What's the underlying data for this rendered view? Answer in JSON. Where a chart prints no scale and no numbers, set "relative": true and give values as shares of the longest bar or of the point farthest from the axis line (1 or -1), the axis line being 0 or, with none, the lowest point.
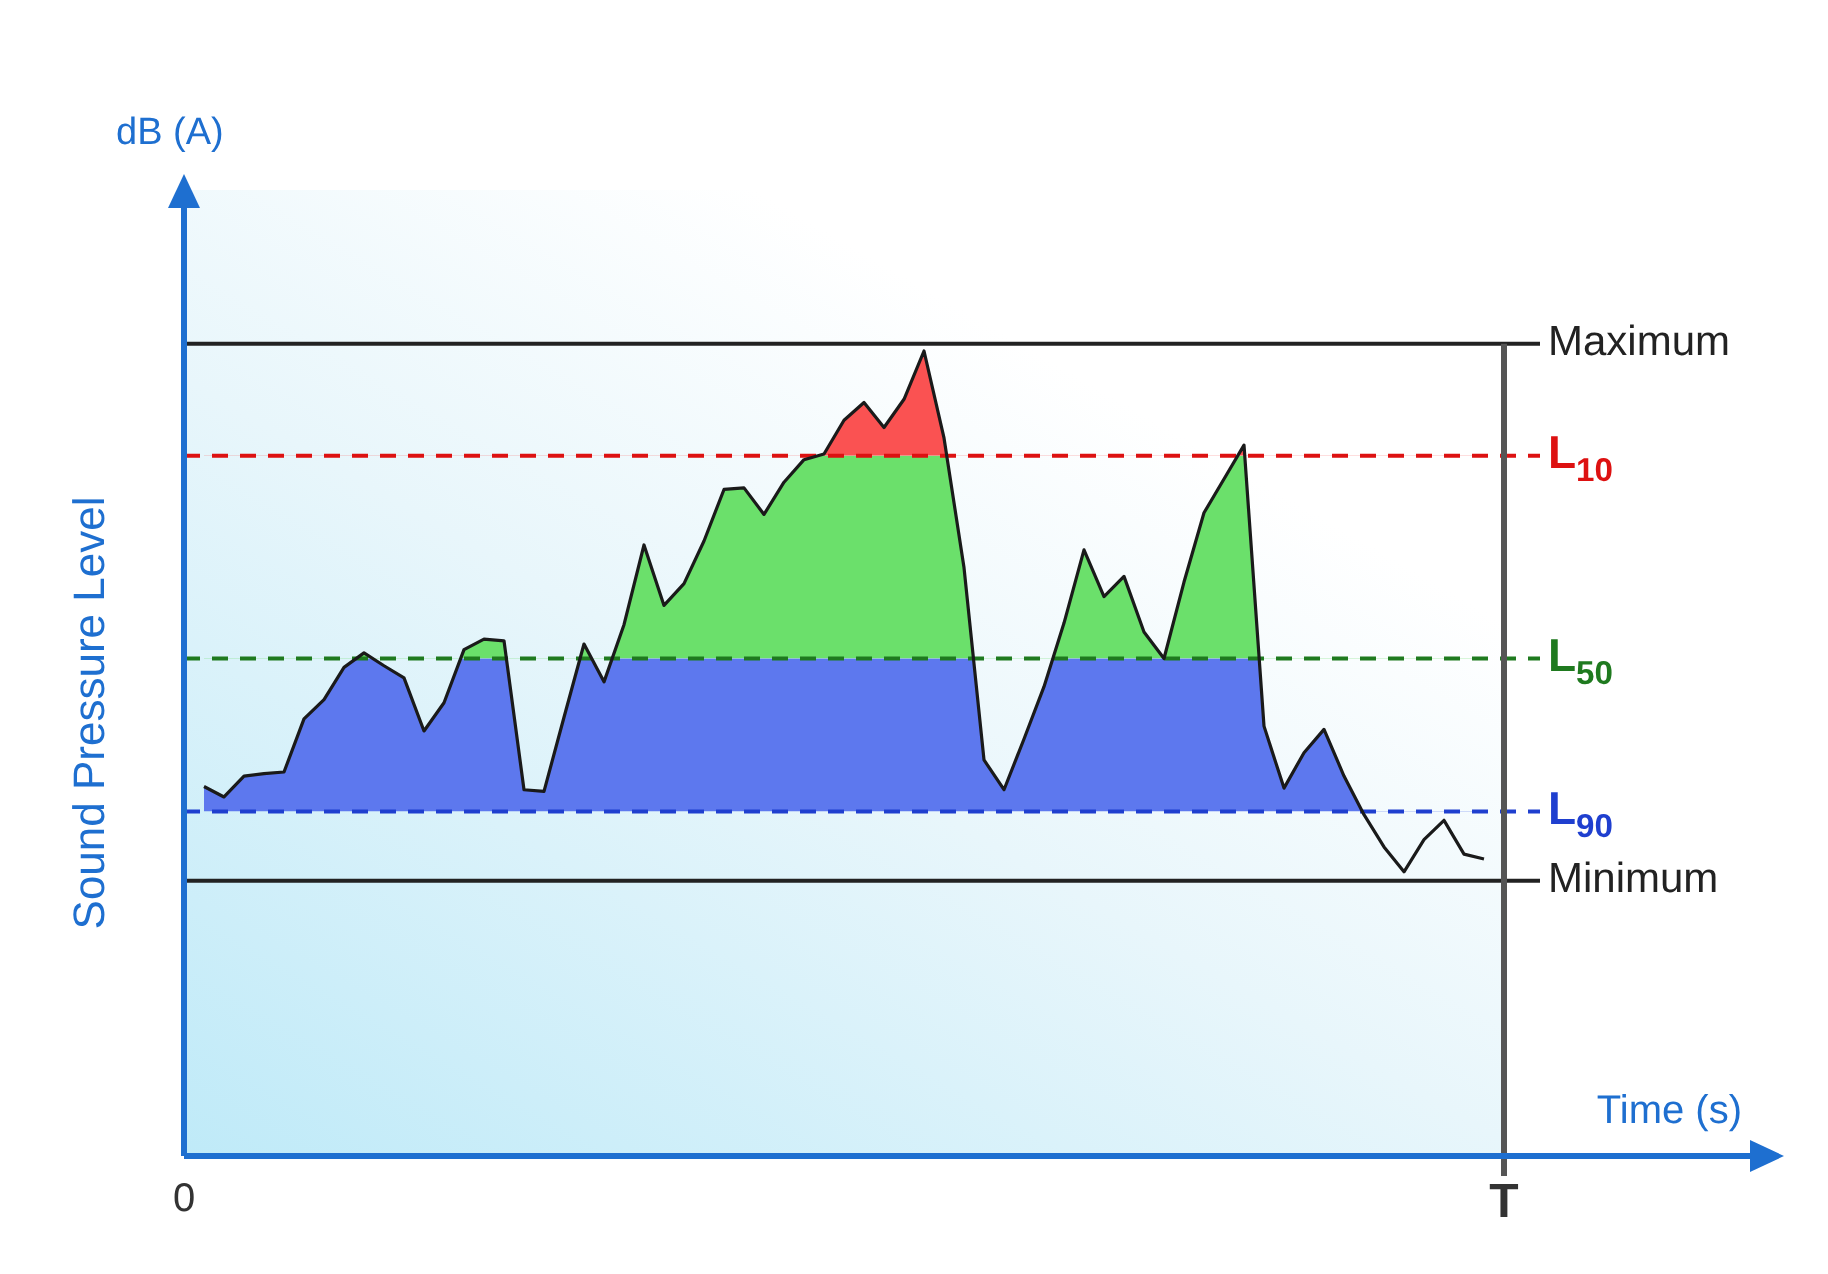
{
  "chart_data": {
    "type": "line",
    "relative": true,
    "ylabel": "Sound Pressure Level",
    "xlabel": "Time (s)",
    "annotations": [
      "dB (A)"
    ],
    "line_style": "solid",
    "categories": [
      "0",
      null,
      null,
      null,
      null,
      null,
      null,
      null,
      null,
      null,
      null,
      null,
      null,
      null,
      null,
      null,
      null,
      null,
      null,
      null,
      null,
      null,
      null,
      null,
      null,
      null,
      null,
      null,
      null,
      null,
      null,
      null,
      null,
      null,
      null,
      null,
      null,
      null,
      null,
      null,
      null,
      null,
      null,
      null,
      null,
      null,
      null,
      null,
      null,
      null,
      null,
      null,
      null,
      null,
      null,
      null,
      null,
      null,
      null,
      null,
      null,
      null,
      null,
      null,
      null,
      null,
      "T"
    ],
    "series": [
      {
        "color": "#1a1a1a",
        "values": [
          null,
          0.459,
          0.446,
          0.472,
          0.475,
          0.477,
          0.543,
          0.567,
          0.607,
          0.625,
          0.609,
          0.594,
          0.528,
          0.563,
          0.629,
          0.642,
          0.64,
          0.455,
          0.453,
          0.545,
          0.636,
          0.589,
          0.66,
          0.759,
          0.684,
          0.711,
          0.764,
          0.828,
          0.83,
          0.797,
          0.837,
          0.865,
          0.872,
          0.914,
          0.936,
          0.905,
          0.94,
          1,
          0.892,
          0.731,
          0.492,
          0.455,
          0.518,
          0.583,
          0.662,
          0.753,
          0.695,
          0.72,
          0.651,
          0.618,
          0.713,
          0.799,
          0.841,
          0.883,
          0.534,
          0.457,
          0.501,
          0.53,
          0.472,
          0.424,
          0.384,
          0.353,
          0.393,
          0.417,
          0.375,
          0.369,
          null
        ]
      }
    ],
    "ref_lines": [
      {
        "axis": "y",
        "value": 1.009,
        "label": "Maximum",
        "color": "#222222",
        "line_style": "solid"
      },
      {
        "axis": "y",
        "value": 0.87,
        "label": "L$_{10}$",
        "color": "#dd1111",
        "line_style": "dashed"
      },
      {
        "axis": "y",
        "value": 0.618,
        "label": "L$_{50}$",
        "color": "#1f7a1f",
        "line_style": "dashed"
      },
      {
        "axis": "y",
        "value": 0.428,
        "label": "L$_{90}$",
        "color": "#1f3fcf",
        "line_style": "dashed"
      },
      {
        "axis": "y",
        "value": 0.342,
        "label": "Minimum",
        "color": "#222222",
        "line_style": "solid"
      },
      {
        "axis": "x",
        "value": "T",
        "color": "#555555",
        "line_style": "solid"
      }
    ]
  }
}
